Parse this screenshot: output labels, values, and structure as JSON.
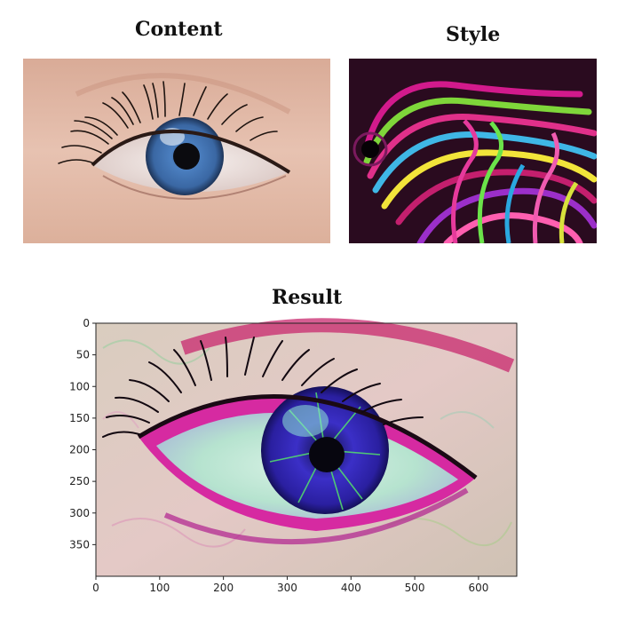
{
  "titles": {
    "content": "Content",
    "style": "Style",
    "result": "Result"
  },
  "result_axes": {
    "x_ticks": [
      0,
      100,
      200,
      300,
      400,
      500,
      600
    ],
    "y_ticks": [
      0,
      50,
      100,
      150,
      200,
      250,
      300,
      350
    ],
    "xlim": [
      0,
      660
    ],
    "ylim": [
      0,
      400
    ]
  },
  "colors": {
    "iris": "#3f6fae",
    "skin": "#e2b7a3",
    "style_magenta": "#d21a8c",
    "style_green": "#7fd63a",
    "result_pink": "#d62aa1",
    "result_iris": "#3322b5"
  }
}
